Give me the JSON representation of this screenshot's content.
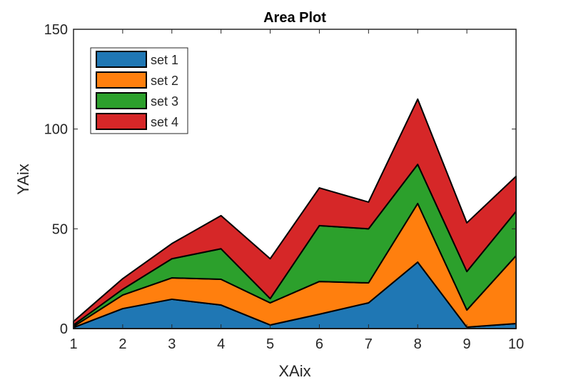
{
  "chart_data": {
    "type": "area",
    "stacked": true,
    "title": "Area Plot",
    "xlabel": "XAix",
    "ylabel": "YAix",
    "xlim": [
      1,
      10
    ],
    "ylim": [
      0,
      150
    ],
    "xticks": [
      1,
      2,
      3,
      4,
      5,
      6,
      7,
      8,
      9,
      10
    ],
    "yticks": [
      0,
      50,
      100,
      150
    ],
    "grid": false,
    "legend_position": "top-left",
    "x": [
      1,
      2,
      3,
      4,
      5,
      6,
      7,
      8,
      9,
      10
    ],
    "series": [
      {
        "name": "set 1",
        "color": "#1f77b4",
        "values": [
          0.5,
          10,
          14.7,
          11.8,
          1.8,
          7.2,
          12.9,
          33.3,
          0.7,
          2.5
        ]
      },
      {
        "name": "set 2",
        "color": "#ff7f0e",
        "values": [
          0.5,
          6.8,
          10.7,
          12.9,
          11.1,
          16.4,
          10,
          29.4,
          8.6,
          34
        ]
      },
      {
        "name": "set 3",
        "color": "#2ca02c",
        "values": [
          0.8,
          2.9,
          9.6,
          15.3,
          2.1,
          28,
          27.1,
          19.6,
          19.3,
          22.2
        ]
      },
      {
        "name": "set 4",
        "color": "#d62728",
        "values": [
          1.8,
          5.3,
          7.6,
          16.6,
          20,
          18.9,
          13.4,
          32.7,
          24.4,
          17.6
        ]
      }
    ]
  }
}
